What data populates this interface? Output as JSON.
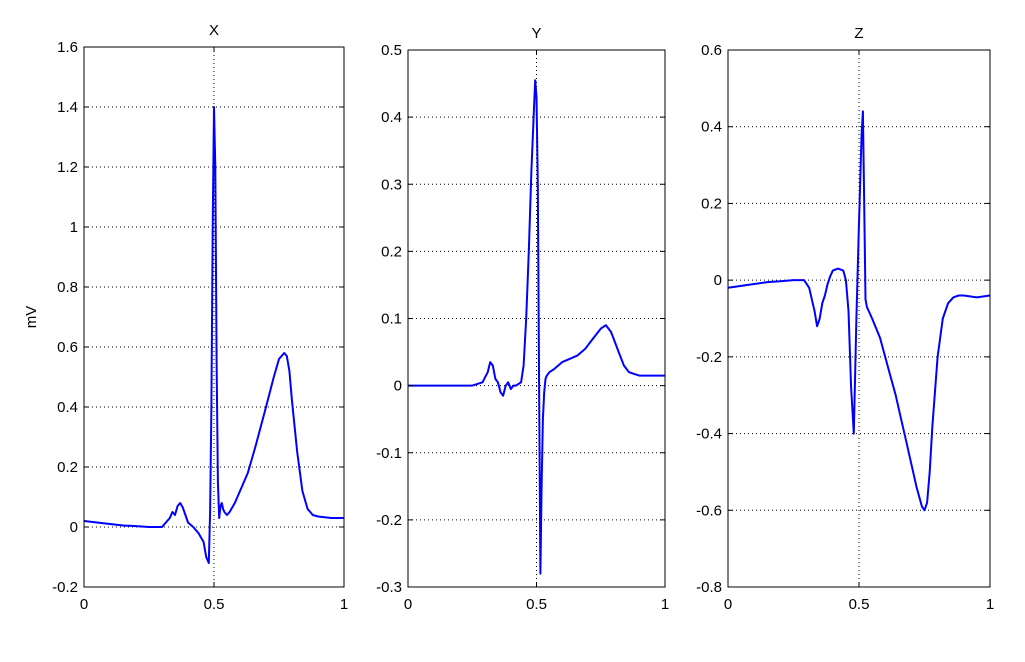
{
  "colors": {
    "series": "#0000ff",
    "axes": "#000000",
    "background": "#ffffff"
  },
  "chart_data": [
    {
      "type": "line",
      "title": "X",
      "xlabel": "",
      "ylabel": "mV",
      "xlim": [
        0,
        1
      ],
      "ylim": [
        -0.2,
        1.6
      ],
      "xticks": [
        0,
        0.5,
        1
      ],
      "xtick_labels": [
        "0",
        "0.5",
        "1"
      ],
      "yticks": [
        -0.2,
        0,
        0.2,
        0.4,
        0.6,
        0.8,
        1,
        1.2,
        1.4,
        1.6
      ],
      "ytick_labels": [
        "-0.2",
        "0",
        "0.2",
        "0.4",
        "0.6",
        "0.8",
        "1",
        "1.2",
        "1.4",
        "1.6"
      ],
      "grid": true,
      "series": [
        {
          "x": [
            0,
            0.05,
            0.1,
            0.15,
            0.2,
            0.25,
            0.3,
            0.31,
            0.33,
            0.34,
            0.35,
            0.36,
            0.37,
            0.38,
            0.39,
            0.4,
            0.42,
            0.44,
            0.46,
            0.47,
            0.48,
            0.485,
            0.49,
            0.495,
            0.5,
            0.505,
            0.51,
            0.515,
            0.52,
            0.525,
            0.53,
            0.535,
            0.54,
            0.55,
            0.56,
            0.58,
            0.6,
            0.63,
            0.66,
            0.7,
            0.73,
            0.75,
            0.77,
            0.78,
            0.79,
            0.8,
            0.82,
            0.84,
            0.86,
            0.88,
            0.9,
            0.95,
            1
          ],
          "y": [
            0.02,
            0.015,
            0.01,
            0.005,
            0.003,
            0.0,
            0.0,
            0.01,
            0.03,
            0.05,
            0.04,
            0.07,
            0.08,
            0.065,
            0.04,
            0.015,
            0.0,
            -0.02,
            -0.05,
            -0.1,
            -0.12,
            0.05,
            0.4,
            1.0,
            1.4,
            1.2,
            0.55,
            0.15,
            0.03,
            0.07,
            0.08,
            0.06,
            0.05,
            0.04,
            0.05,
            0.08,
            0.12,
            0.18,
            0.27,
            0.4,
            0.5,
            0.56,
            0.58,
            0.57,
            0.52,
            0.42,
            0.25,
            0.12,
            0.06,
            0.04,
            0.035,
            0.03,
            0.03
          ]
        }
      ]
    },
    {
      "type": "line",
      "title": "Y",
      "xlabel": "",
      "ylabel": "",
      "xlim": [
        0,
        1
      ],
      "ylim": [
        -0.3,
        0.5
      ],
      "xticks": [
        0,
        0.5,
        1
      ],
      "xtick_labels": [
        "0",
        "0.5",
        "1"
      ],
      "yticks": [
        -0.3,
        -0.2,
        -0.1,
        0,
        0.1,
        0.2,
        0.3,
        0.4,
        0.5
      ],
      "ytick_labels": [
        "-0.3",
        "-0.2",
        "-0.1",
        "0",
        "0.1",
        "0.2",
        "0.3",
        "0.4",
        "0.5"
      ],
      "grid": true,
      "series": [
        {
          "x": [
            0,
            0.05,
            0.1,
            0.15,
            0.2,
            0.25,
            0.29,
            0.31,
            0.32,
            0.33,
            0.34,
            0.35,
            0.36,
            0.37,
            0.38,
            0.39,
            0.4,
            0.41,
            0.42,
            0.44,
            0.45,
            0.46,
            0.47,
            0.48,
            0.49,
            0.495,
            0.5,
            0.505,
            0.51,
            0.515,
            0.52,
            0.525,
            0.53,
            0.535,
            0.54,
            0.55,
            0.57,
            0.6,
            0.63,
            0.66,
            0.69,
            0.72,
            0.75,
            0.77,
            0.79,
            0.8,
            0.82,
            0.84,
            0.86,
            0.9,
            1
          ],
          "y": [
            0.0,
            0.0,
            0.0,
            0.0,
            0.0,
            0.0,
            0.005,
            0.02,
            0.035,
            0.03,
            0.01,
            0.005,
            -0.01,
            -0.015,
            0.0,
            0.005,
            -0.005,
            0.0,
            0.0,
            0.005,
            0.03,
            0.1,
            0.2,
            0.32,
            0.41,
            0.455,
            0.43,
            0.3,
            0.0,
            -0.28,
            -0.15,
            -0.05,
            -0.01,
            0.01,
            0.015,
            0.02,
            0.025,
            0.035,
            0.04,
            0.045,
            0.055,
            0.07,
            0.085,
            0.09,
            0.08,
            0.07,
            0.05,
            0.03,
            0.02,
            0.015,
            0.015
          ]
        }
      ]
    },
    {
      "type": "line",
      "title": "Z",
      "xlabel": "",
      "ylabel": "",
      "xlim": [
        0,
        1
      ],
      "ylim": [
        -0.8,
        0.6
      ],
      "xticks": [
        0,
        0.5,
        1
      ],
      "xtick_labels": [
        "0",
        "0.5",
        "1"
      ],
      "yticks": [
        -0.8,
        -0.6,
        -0.4,
        -0.2,
        0,
        0.2,
        0.4,
        0.6
      ],
      "ytick_labels": [
        "-0.8",
        "-0.6",
        "-0.4",
        "-0.2",
        "0",
        "0.2",
        "0.4",
        "0.6"
      ],
      "grid": true,
      "series": [
        {
          "x": [
            0,
            0.05,
            0.1,
            0.15,
            0.2,
            0.25,
            0.29,
            0.31,
            0.32,
            0.33,
            0.34,
            0.35,
            0.36,
            0.37,
            0.38,
            0.39,
            0.4,
            0.42,
            0.44,
            0.45,
            0.46,
            0.47,
            0.48,
            0.49,
            0.5,
            0.51,
            0.515,
            0.52,
            0.525,
            0.53,
            0.55,
            0.58,
            0.6,
            0.62,
            0.64,
            0.66,
            0.68,
            0.7,
            0.72,
            0.74,
            0.75,
            0.76,
            0.77,
            0.78,
            0.8,
            0.82,
            0.84,
            0.86,
            0.88,
            0.9,
            0.95,
            1
          ],
          "y": [
            -0.02,
            -0.015,
            -0.01,
            -0.005,
            -0.003,
            0.0,
            0.0,
            -0.02,
            -0.05,
            -0.08,
            -0.12,
            -0.1,
            -0.06,
            -0.04,
            -0.01,
            0.01,
            0.025,
            0.03,
            0.025,
            0.0,
            -0.08,
            -0.28,
            -0.4,
            -0.1,
            0.15,
            0.38,
            0.44,
            0.2,
            -0.05,
            -0.07,
            -0.1,
            -0.15,
            -0.2,
            -0.25,
            -0.3,
            -0.36,
            -0.42,
            -0.48,
            -0.54,
            -0.59,
            -0.6,
            -0.58,
            -0.5,
            -0.38,
            -0.2,
            -0.1,
            -0.06,
            -0.045,
            -0.04,
            -0.04,
            -0.045,
            -0.04
          ]
        }
      ]
    }
  ]
}
